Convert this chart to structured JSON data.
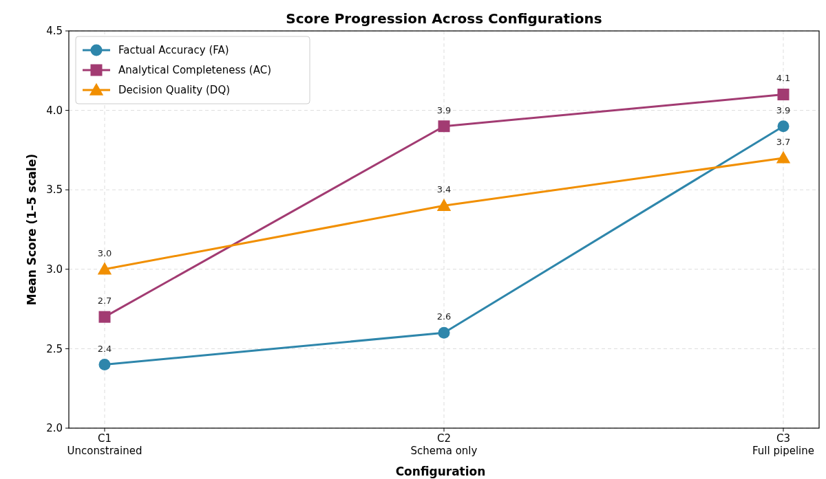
{
  "chart_data": {
    "type": "line",
    "title": "Score Progression Across Configurations",
    "xlabel": "Configuration",
    "ylabel": "Mean Score (1–5 scale)",
    "categories": [
      "C1\nUnconstrained",
      "C2\nSchema only",
      "C3\nFull pipeline"
    ],
    "series": [
      {
        "name": "Factual Accuracy (FA)",
        "color": "#2e86ab",
        "marker": "circle",
        "values": [
          2.4,
          2.6,
          3.9
        ],
        "value_labels": [
          "2.4",
          "2.6",
          "3.9"
        ]
      },
      {
        "name": "Analytical Completeness (AC)",
        "color": "#a23b72",
        "marker": "square",
        "values": [
          2.7,
          3.9,
          4.1
        ],
        "value_labels": [
          "2.7",
          "3.9",
          "4.1"
        ]
      },
      {
        "name": "Decision Quality (DQ)",
        "color": "#f18f01",
        "marker": "triangle",
        "values": [
          3.0,
          3.4,
          3.7
        ],
        "value_labels": [
          "3.0",
          "3.4",
          "3.7"
        ]
      }
    ],
    "ylim": [
      2,
      4.5
    ],
    "yticks": [
      {
        "value": 2,
        "label": "2.0"
      },
      {
        "value": 2.5,
        "label": "2.5"
      },
      {
        "value": 3,
        "label": "3.0"
      },
      {
        "value": 3.5,
        "label": "3.5"
      },
      {
        "value": 4,
        "label": "4.0"
      },
      {
        "value": 4.5,
        "label": "4.5"
      }
    ],
    "grid": true,
    "legend": "top left",
    "line_style": "solid"
  }
}
